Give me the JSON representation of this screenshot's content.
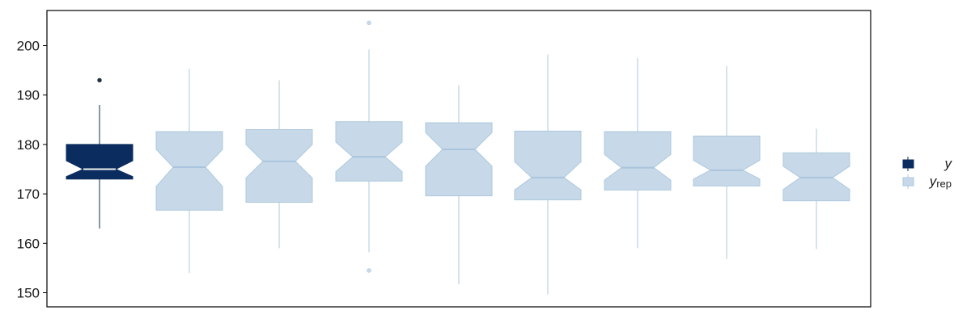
{
  "chart_data": {
    "type": "boxplot",
    "orientation": "vertical",
    "notched": true,
    "ylim": [
      148,
      208
    ],
    "yticks": [
      150,
      160,
      170,
      180,
      190,
      200
    ],
    "xlabel": "",
    "ylabel": "",
    "legend": {
      "position": "right",
      "entries": [
        {
          "key": "y",
          "label": "y",
          "sub": ""
        },
        {
          "key": "yrep",
          "label": "y",
          "sub": "rep"
        }
      ]
    },
    "colors": {
      "y_fill": "#0b2c5e",
      "y_stroke": "#0b2c5e",
      "y_median": "#f2f2f2",
      "yrep_fill": "#c7d9e8",
      "yrep_stroke": "#adc8de",
      "yrep_median": "#a9c4dc",
      "frame": "#000000"
    },
    "boxes": [
      {
        "series": "y",
        "whisker_low": 163.0,
        "q1": 173.0,
        "median": 175.0,
        "q3": 180.0,
        "whisker_high": 188.0,
        "notch_low": 173.5,
        "notch_high": 176.7,
        "outliers": [
          193.0
        ]
      },
      {
        "series": "yrep",
        "whisker_low": 154.0,
        "q1": 166.7,
        "median": 175.4,
        "q3": 182.6,
        "whisker_high": 195.3,
        "notch_low": 171.5,
        "notch_high": 179.0,
        "outliers": []
      },
      {
        "series": "yrep",
        "whisker_low": 159.0,
        "q1": 168.3,
        "median": 176.6,
        "q3": 183.0,
        "whisker_high": 193.0,
        "notch_low": 173.2,
        "notch_high": 180.0,
        "outliers": []
      },
      {
        "series": "yrep",
        "whisker_low": 158.2,
        "q1": 172.6,
        "median": 177.5,
        "q3": 184.6,
        "whisker_high": 199.2,
        "notch_low": 174.5,
        "notch_high": 180.5,
        "outliers": [
          204.6,
          154.5
        ]
      },
      {
        "series": "yrep",
        "whisker_low": 151.7,
        "q1": 169.6,
        "median": 179.0,
        "q3": 184.4,
        "whisker_high": 192.0,
        "notch_low": 175.6,
        "notch_high": 182.4,
        "outliers": []
      },
      {
        "series": "yrep",
        "whisker_low": 149.7,
        "q1": 168.8,
        "median": 173.3,
        "q3": 182.7,
        "whisker_high": 198.2,
        "notch_low": 170.8,
        "notch_high": 176.5,
        "outliers": []
      },
      {
        "series": "yrep",
        "whisker_low": 159.0,
        "q1": 170.8,
        "median": 175.3,
        "q3": 182.6,
        "whisker_high": 197.5,
        "notch_low": 172.8,
        "notch_high": 178.0,
        "outliers": []
      },
      {
        "series": "yrep",
        "whisker_low": 156.8,
        "q1": 171.6,
        "median": 174.8,
        "q3": 181.7,
        "whisker_high": 195.9,
        "notch_low": 173.0,
        "notch_high": 176.8,
        "outliers": []
      },
      {
        "series": "yrep",
        "whisker_low": 158.8,
        "q1": 168.6,
        "median": 173.3,
        "q3": 178.3,
        "whisker_high": 183.2,
        "notch_low": 170.9,
        "notch_high": 175.6,
        "outliers": []
      }
    ]
  }
}
